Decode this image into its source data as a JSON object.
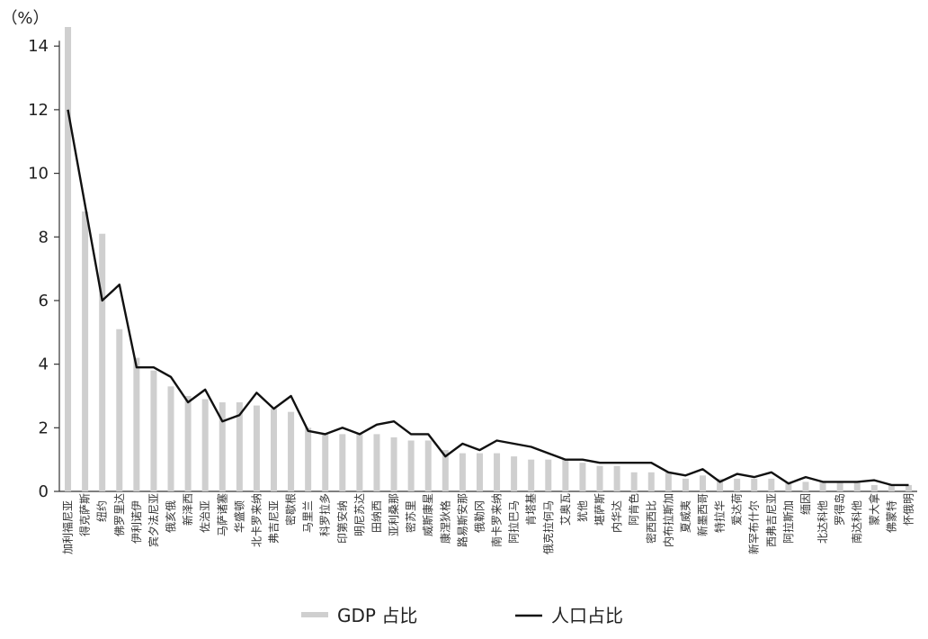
{
  "chart_data": {
    "type": "bar",
    "y_unit_label": "（%）",
    "ylim": [
      0,
      14.6
    ],
    "yticks": [
      0,
      2,
      4,
      6,
      8,
      10,
      12,
      14
    ],
    "grid": false,
    "legend_placement": "bottom-center",
    "categories": [
      "加利福尼亚",
      "得克萨斯",
      "纽约",
      "佛罗里达",
      "伊利诺伊",
      "宾夕法尼亚",
      "俄亥俄",
      "新泽西",
      "佐治亚",
      "马萨诸塞",
      "华盛顿",
      "北卡罗来纳",
      "弗吉尼亚",
      "密歇根",
      "马里兰",
      "科罗拉多",
      "印第安纳",
      "明尼苏达",
      "田纳西",
      "亚利桑那",
      "密苏里",
      "威斯康星",
      "康涅狄格",
      "路易斯安那",
      "俄勒冈",
      "南卡罗来纳",
      "阿拉巴马",
      "肯塔基",
      "俄克拉何马",
      "艾奥瓦",
      "犹他",
      "堪萨斯",
      "内华达",
      "阿肯色",
      "密西西比",
      "内布拉斯加",
      "夏威夷",
      "新墨西哥",
      "特拉华",
      "爱达荷",
      "新罕布什尔",
      "西弗吉尼亚",
      "阿拉斯加",
      "缅因",
      "北达科他",
      "罗得岛",
      "南达科他",
      "蒙大拿",
      "佛蒙特",
      "怀俄明"
    ],
    "series": [
      {
        "name": "GDP 占比",
        "kind": "bar",
        "color": "#cfcfcf",
        "values": [
          14.6,
          8.8,
          8.1,
          5.1,
          4.2,
          3.8,
          3.3,
          3.0,
          2.9,
          2.8,
          2.8,
          2.7,
          2.6,
          2.5,
          2.0,
          1.8,
          1.8,
          1.8,
          1.8,
          1.7,
          1.6,
          1.6,
          1.3,
          1.2,
          1.2,
          1.2,
          1.1,
          1.0,
          1.0,
          1.0,
          0.9,
          0.8,
          0.8,
          0.6,
          0.6,
          0.6,
          0.4,
          0.5,
          0.4,
          0.4,
          0.4,
          0.4,
          0.3,
          0.3,
          0.3,
          0.3,
          0.3,
          0.2,
          0.2,
          0.2
        ]
      },
      {
        "name": "人口占比",
        "kind": "line",
        "color": "#111111",
        "values": [
          12.0,
          9.0,
          6.0,
          6.5,
          3.9,
          3.9,
          3.6,
          2.8,
          3.2,
          2.2,
          2.4,
          3.1,
          2.6,
          3.0,
          1.9,
          1.8,
          2.0,
          1.8,
          2.1,
          2.2,
          1.8,
          1.8,
          1.1,
          1.5,
          1.3,
          1.6,
          1.5,
          1.4,
          1.2,
          1.0,
          1.0,
          0.9,
          0.9,
          0.9,
          0.9,
          0.6,
          0.5,
          0.7,
          0.3,
          0.55,
          0.45,
          0.6,
          0.25,
          0.45,
          0.3,
          0.3,
          0.3,
          0.35,
          0.2,
          0.2
        ]
      }
    ]
  }
}
